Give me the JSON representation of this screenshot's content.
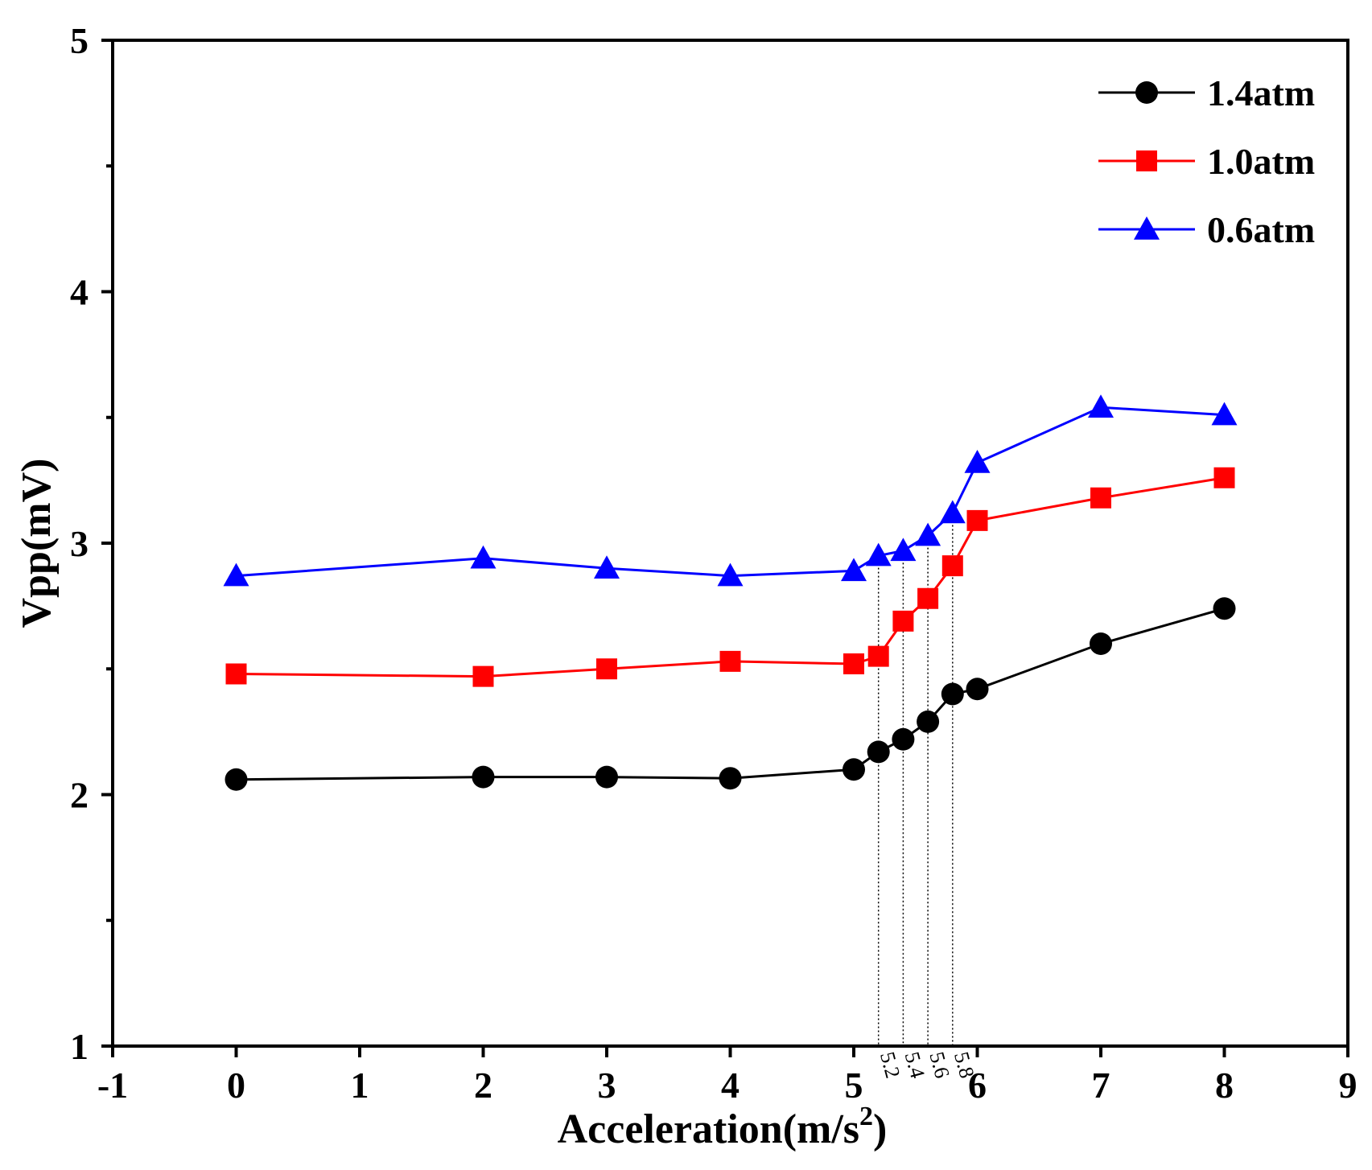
{
  "chart_data": {
    "type": "line",
    "title": "",
    "xlabel": "Acceleration(m/s",
    "xlabel_sup": "2",
    "xlabel_close": ")",
    "ylabel": "Vpp(mV)",
    "xlim": [
      -1,
      9
    ],
    "ylim": [
      1,
      5
    ],
    "x_ticks": [
      -1,
      0,
      1,
      2,
      3,
      4,
      5,
      6,
      7,
      8,
      9
    ],
    "x_tick_labels": [
      "-1",
      "0",
      "1",
      "2",
      "3",
      "4",
      "5",
      "6",
      "7",
      "8",
      "9"
    ],
    "y_ticks": [
      1,
      2,
      3,
      4,
      5
    ],
    "y_tick_labels": [
      "1",
      "2",
      "3",
      "4",
      "5"
    ],
    "minor_x_labels": [
      {
        "x": 5.2,
        "label": "5.2"
      },
      {
        "x": 5.4,
        "label": "5.4"
      },
      {
        "x": 5.6,
        "label": "5.6"
      },
      {
        "x": 5.8,
        "label": "5.8"
      }
    ],
    "x": [
      0,
      2,
      3,
      4,
      5,
      5.2,
      5.4,
      5.6,
      5.8,
      6,
      7,
      8
    ],
    "series": [
      {
        "name": "1.4atm",
        "color": "#000000",
        "marker": "circle",
        "values": [
          2.06,
          2.07,
          2.07,
          2.065,
          2.1,
          2.17,
          2.22,
          2.29,
          2.4,
          2.42,
          2.6,
          2.74
        ]
      },
      {
        "name": "1.0atm",
        "color": "#ff0000",
        "marker": "square",
        "values": [
          2.48,
          2.47,
          2.5,
          2.53,
          2.52,
          2.55,
          2.69,
          2.78,
          2.91,
          3.09,
          3.18,
          3.26
        ]
      },
      {
        "name": "0.6atm",
        "color": "#0000ff",
        "marker": "triangle",
        "values": [
          2.87,
          2.94,
          2.9,
          2.87,
          2.89,
          2.95,
          2.97,
          3.03,
          3.12,
          3.32,
          3.54,
          3.51
        ]
      }
    ],
    "reference_lines": [
      5.2,
      5.4,
      5.6,
      5.8
    ],
    "legend": {
      "position": "top-right",
      "entries": [
        "1.4atm",
        "1.0atm",
        "0.6atm"
      ]
    },
    "grid": false
  }
}
